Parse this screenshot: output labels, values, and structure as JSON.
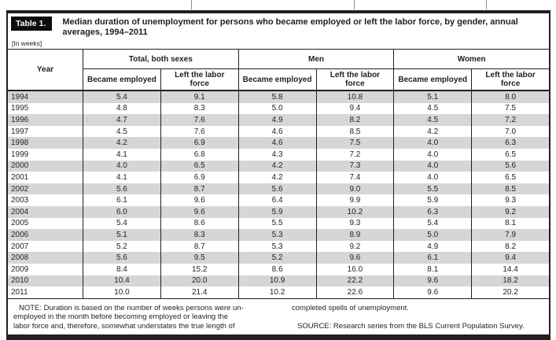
{
  "table": {
    "label": "Table 1.",
    "title": "Median duration of unemployment for persons who became employed or left the labor force, by gender, annual averages, 1994–2011",
    "units": "[In weeks]"
  },
  "columns": {
    "year": "Year",
    "groups": [
      {
        "label": "Total, both sexes",
        "sub": [
          "Became employed",
          "Left the labor force"
        ]
      },
      {
        "label": "Men",
        "sub": [
          "Became employed",
          "Left the labor force"
        ]
      },
      {
        "label": "Women",
        "sub": [
          "Became employed",
          "Left the labor force"
        ]
      }
    ]
  },
  "rows": [
    {
      "year": "1994",
      "values": [
        "5.4",
        "9.1",
        "5.8",
        "10.8",
        "5.1",
        "8.0"
      ]
    },
    {
      "year": "1995",
      "values": [
        "4.8",
        "8.3",
        "5.0",
        "9.4",
        "4.5",
        "7.5"
      ]
    },
    {
      "year": "1996",
      "values": [
        "4.7",
        "7.6",
        "4.9",
        "8.2",
        "4.5",
        "7.2"
      ]
    },
    {
      "year": "1997",
      "values": [
        "4.5",
        "7.6",
        "4.6",
        "8.5",
        "4.2",
        "7.0"
      ]
    },
    {
      "year": "1998",
      "values": [
        "4.2",
        "6.9",
        "4.6",
        "7.5",
        "4.0",
        "6.3"
      ]
    },
    {
      "year": "1999",
      "values": [
        "4.1",
        "6.8",
        "4.3",
        "7.2",
        "4.0",
        "6.5"
      ]
    },
    {
      "year": "2000",
      "values": [
        "4.0",
        "6.5",
        "4.2",
        "7.3",
        "4.0",
        "5.6"
      ]
    },
    {
      "year": "2001",
      "values": [
        "4.1",
        "6.9",
        "4.2",
        "7.4",
        "4.0",
        "6.5"
      ]
    },
    {
      "year": "2002",
      "values": [
        "5.6",
        "8.7",
        "5.6",
        "9.0",
        "5.5",
        "8.5"
      ]
    },
    {
      "year": "2003",
      "values": [
        "6.1",
        "9.6",
        "6.4",
        "9.9",
        "5.9",
        "9.3"
      ]
    },
    {
      "year": "2004",
      "values": [
        "6.0",
        "9.6",
        "5.9",
        "10.2",
        "6.3",
        "9.2"
      ]
    },
    {
      "year": "2005",
      "values": [
        "5.4",
        "8.6",
        "5.5",
        "9.3",
        "5.4",
        "8.1"
      ]
    },
    {
      "year": "2006",
      "values": [
        "5.1",
        "8.3",
        "5.3",
        "8.9",
        "5.0",
        "7.9"
      ]
    },
    {
      "year": "2007",
      "values": [
        "5.2",
        "8.7",
        "5.3",
        "9.2",
        "4.9",
        "8.2"
      ]
    },
    {
      "year": "2008",
      "values": [
        "5.6",
        "9.5",
        "5.2",
        "9.6",
        "6.1",
        "9.4"
      ]
    },
    {
      "year": "2009",
      "values": [
        "8.4",
        "15.2",
        "8.6",
        "16.0",
        "8.1",
        "14.4"
      ]
    },
    {
      "year": "2010",
      "values": [
        "10.4",
        "20.0",
        "10.9",
        "22.2",
        "9.6",
        "18.2"
      ]
    },
    {
      "year": "2011",
      "values": [
        "10.0",
        "21.4",
        "10.2",
        "22.6",
        "9.6",
        "20.2"
      ]
    }
  ],
  "note": {
    "left_lines": [
      "NOTE:  Duration is based on the number of weeks persons were un-",
      "employed in the month before becoming employed or leaving the",
      "labor force and, therefore, somewhat understates the true length of"
    ],
    "right_lines": [
      "completed spells of unemployment.",
      "SOURCE:  Research series from the BLS Current Population Survey."
    ]
  },
  "colors": {
    "border": "#231f20",
    "stripe": "#d6d6d6",
    "label_bg": "#0c0c0c",
    "label_fg": "#ffffff",
    "text": "#231f20"
  }
}
